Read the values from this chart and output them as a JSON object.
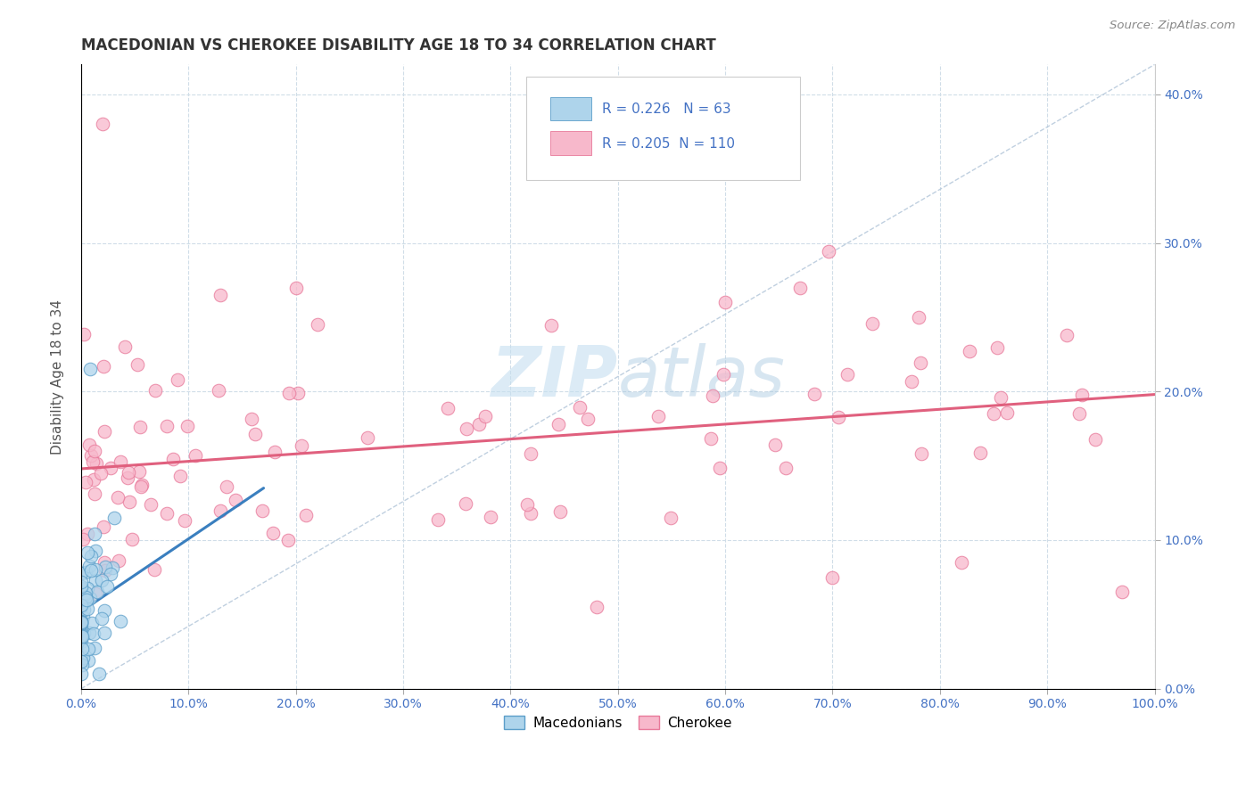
{
  "title": "MACEDONIAN VS CHEROKEE DISABILITY AGE 18 TO 34 CORRELATION CHART",
  "source_text": "Source: ZipAtlas.com",
  "ylabel": "Disability Age 18 to 34",
  "xlim": [
    0.0,
    1.0
  ],
  "ylim": [
    0.0,
    0.42
  ],
  "x_ticks": [
    0.0,
    0.1,
    0.2,
    0.3,
    0.4,
    0.5,
    0.6,
    0.7,
    0.8,
    0.9,
    1.0
  ],
  "y_ticks": [
    0.0,
    0.1,
    0.2,
    0.3,
    0.4
  ],
  "R_mac": 0.226,
  "N_mac": 63,
  "R_cher": 0.205,
  "N_cher": 110,
  "blue_fill": "#aed4eb",
  "blue_edge": "#5b9ec9",
  "pink_fill": "#f7b8cb",
  "pink_edge": "#e8799a",
  "blue_line_color": "#3a7fbf",
  "pink_line_color": "#e0607e",
  "ref_line_color": "#b0c4d8",
  "legend_label_mac": "Macedonians",
  "legend_label_cher": "Cherokee",
  "watermark_color": "#c5dff0",
  "background_color": "#ffffff",
  "grid_color": "#d0dde8",
  "title_color": "#333333",
  "tick_color": "#4472c4",
  "ylabel_color": "#555555"
}
